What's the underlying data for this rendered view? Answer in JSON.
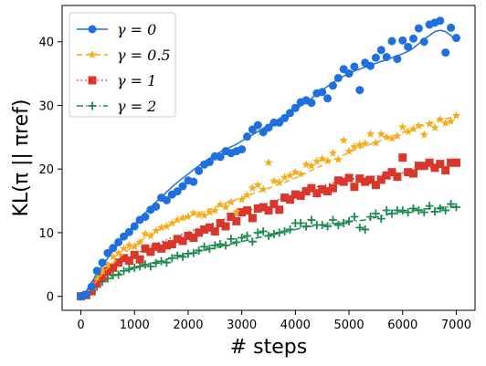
{
  "chart_data": {
    "type": "scatter",
    "xlabel": "# steps",
    "ylabel": "KL(π || πref)",
    "xlim": [
      -350,
      7350
    ],
    "ylim": [
      -2.2,
      45.7
    ],
    "xticks": [
      0,
      1000,
      2000,
      3000,
      4000,
      5000,
      6000,
      7000
    ],
    "xtick_labels": [
      "0",
      "1000",
      "2000",
      "3000",
      "4000",
      "5000",
      "6000",
      "7000"
    ],
    "yticks": [
      0,
      10,
      20,
      30,
      40
    ],
    "ytick_labels": [
      "0",
      "10",
      "20",
      "30",
      "40"
    ],
    "grid": false,
    "legend_position": "top-left",
    "series": [
      {
        "name": "γ = 0",
        "color": "#1f6fde",
        "marker": "circle",
        "line_style": "solid",
        "x": [
          0,
          100,
          200,
          300,
          400,
          500,
          600,
          700,
          800,
          900,
          1000,
          1100,
          1200,
          1300,
          1400,
          1500,
          1600,
          1700,
          1800,
          1900,
          2000,
          2100,
          2200,
          2300,
          2400,
          2500,
          2600,
          2700,
          2800,
          2900,
          3000,
          3100,
          3200,
          3300,
          3400,
          3500,
          3600,
          3700,
          3800,
          3900,
          4000,
          4100,
          4200,
          4300,
          4400,
          4500,
          4600,
          4700,
          4800,
          4900,
          5000,
          5100,
          5200,
          5300,
          5400,
          5500,
          5600,
          5700,
          5800,
          5900,
          6000,
          6100,
          6200,
          6300,
          6400,
          6500,
          6600,
          6700,
          6800,
          6900,
          7000
        ],
        "values": [
          0,
          0.3,
          1.5,
          4.0,
          5.3,
          6.8,
          7.6,
          8.5,
          9.4,
          10.1,
          11.0,
          12.0,
          12.5,
          13.6,
          14.1,
          15.5,
          15.1,
          16.0,
          16.5,
          17.3,
          18.2,
          18.0,
          19.7,
          20.7,
          21.1,
          22.0,
          21.9,
          22.8,
          22.5,
          22.8,
          23.1,
          25.1,
          26.2,
          26.9,
          25.8,
          26.5,
          27.3,
          27.3,
          28.0,
          28.8,
          29.6,
          30.5,
          30.8,
          30.4,
          31.9,
          32.1,
          31.1,
          33.1,
          34.3,
          35.7,
          35.0,
          36.1,
          32.4,
          36.7,
          36.2,
          37.5,
          38.7,
          37.6,
          40.1,
          37.3,
          40.2,
          39.2,
          40.5,
          42.1,
          40.0,
          42.7,
          43.0,
          43.3,
          38.3,
          42.2,
          40.6
        ],
        "fit": [
          0,
          0.8,
          2.2,
          3.5,
          4.8,
          6.0,
          7.2,
          8.3,
          9.3,
          10.3,
          11.3,
          12.2,
          13.1,
          14.0,
          14.8,
          15.6,
          16.4,
          17.2,
          17.9,
          18.6,
          19.2,
          19.9,
          20.5,
          21.1,
          21.7,
          22.2,
          22.7,
          23.1,
          23.5,
          23.9,
          24.4,
          24.9,
          25.4,
          25.9,
          26.4,
          26.9,
          27.4,
          27.9,
          28.4,
          28.9,
          29.4,
          29.9,
          30.5,
          31.1,
          31.8,
          32.4,
          33.0,
          33.6,
          34.1,
          34.6,
          35.0,
          35.4,
          35.7,
          36.0,
          36.3,
          36.6,
          36.9,
          37.2,
          37.5,
          37.8,
          38.1,
          38.5,
          39.0,
          39.7,
          40.4,
          41.0,
          41.6,
          41.8,
          41.6,
          41.0,
          40.0
        ]
      },
      {
        "name": "γ = 0.5",
        "color": "#f5ac1b",
        "marker": "star",
        "line_style": "dashed",
        "x": [
          0,
          100,
          200,
          300,
          400,
          500,
          600,
          700,
          800,
          900,
          1000,
          1100,
          1200,
          1300,
          1400,
          1500,
          1600,
          1700,
          1800,
          1900,
          2000,
          2100,
          2200,
          2300,
          2400,
          2500,
          2600,
          2700,
          2800,
          2900,
          3000,
          3100,
          3200,
          3300,
          3400,
          3500,
          3600,
          3700,
          3800,
          3900,
          4000,
          4100,
          4200,
          4300,
          4400,
          4500,
          4600,
          4700,
          4800,
          4900,
          5000,
          5100,
          5200,
          5300,
          5400,
          5500,
          5600,
          5700,
          5800,
          5900,
          6000,
          6100,
          6200,
          6300,
          6400,
          6500,
          6600,
          6700,
          6800,
          6900,
          7000
        ],
        "values": [
          0,
          0.3,
          1.5,
          3.0,
          4.0,
          5.0,
          6.2,
          6.8,
          7.5,
          8.0,
          7.8,
          8.5,
          9.8,
          9.5,
          10.3,
          10.8,
          11.0,
          11.5,
          12.0,
          12.3,
          12.5,
          13.1,
          12.8,
          12.7,
          13.2,
          13.5,
          14.4,
          14.0,
          14.8,
          13.3,
          15.2,
          15.9,
          17.0,
          17.5,
          16.8,
          21.0,
          18.1,
          17.9,
          18.7,
          19.0,
          19.5,
          19.2,
          20.7,
          20.5,
          21.2,
          21.6,
          21.3,
          22.5,
          21.5,
          24.5,
          22.8,
          23.5,
          23.8,
          24.0,
          25.5,
          24.1,
          25.5,
          25.0,
          24.8,
          25.2,
          26.6,
          25.9,
          26.3,
          26.8,
          25.4,
          27.1,
          26.5,
          27.8,
          27.2,
          27.5,
          28.4
        ],
        "fit": [
          0,
          0.5,
          1.5,
          2.5,
          3.5,
          4.4,
          5.2,
          6.0,
          6.7,
          7.4,
          8.0,
          8.6,
          9.2,
          9.7,
          10.2,
          10.7,
          11.1,
          11.5,
          11.9,
          12.2,
          12.5,
          12.8,
          13.1,
          13.4,
          13.7,
          14.0,
          14.3,
          14.6,
          14.9,
          15.2,
          15.5,
          15.8,
          16.1,
          16.4,
          16.7,
          17.0,
          17.3,
          17.6,
          17.9,
          18.2,
          18.6,
          19.0,
          19.4,
          19.8,
          20.2,
          20.6,
          21.0,
          21.4,
          21.8,
          22.2,
          22.6,
          23.0,
          23.3,
          23.6,
          23.9,
          24.2,
          24.5,
          24.8,
          25.1,
          25.4,
          25.7,
          26.0,
          26.3,
          26.6,
          26.9,
          27.2,
          27.5,
          27.7,
          27.9,
          28.1,
          28.3
        ]
      },
      {
        "name": "γ = 1",
        "color": "#d9372b",
        "marker": "square",
        "line_style": "dotted",
        "x": [
          0,
          100,
          200,
          300,
          400,
          500,
          600,
          700,
          800,
          900,
          1000,
          1100,
          1200,
          1300,
          1400,
          1500,
          1600,
          1700,
          1800,
          1900,
          2000,
          2100,
          2200,
          2300,
          2400,
          2500,
          2600,
          2700,
          2800,
          2900,
          3000,
          3100,
          3200,
          3300,
          3400,
          3500,
          3600,
          3700,
          3800,
          3900,
          4000,
          4100,
          4200,
          4300,
          4400,
          4500,
          4600,
          4700,
          4800,
          4900,
          5000,
          5100,
          5200,
          5300,
          5400,
          5500,
          5600,
          5700,
          5800,
          5900,
          6000,
          6100,
          6200,
          6300,
          6400,
          6500,
          6600,
          6700,
          6800,
          6900,
          7000
        ],
        "values": [
          0,
          0.2,
          0.8,
          2.0,
          3.0,
          4.0,
          4.5,
          5.3,
          6.0,
          5.6,
          6.5,
          5.8,
          7.5,
          7.0,
          7.8,
          7.5,
          8.0,
          8.2,
          9.0,
          8.7,
          9.5,
          9.2,
          10.0,
          10.5,
          10.8,
          10.2,
          11.5,
          11.0,
          12.5,
          11.8,
          13.2,
          13.5,
          12.3,
          13.8,
          14.0,
          13.5,
          14.5,
          13.6,
          15.5,
          15.2,
          16.0,
          15.8,
          16.5,
          17.0,
          16.2,
          16.8,
          16.5,
          17.0,
          18.2,
          18.0,
          18.6,
          17.2,
          18.5,
          18.0,
          18.3,
          17.5,
          18.3,
          19.0,
          19.5,
          18.8,
          21.8,
          19.5,
          19.3,
          20.5,
          20.5,
          21.0,
          20.2,
          20.8,
          19.8,
          21.0,
          21.0
        ],
        "fit": [
          0,
          0.5,
          1.2,
          2.0,
          2.8,
          3.6,
          4.3,
          5.0,
          5.6,
          6.1,
          6.6,
          7.0,
          7.4,
          7.8,
          8.2,
          8.6,
          8.9,
          9.2,
          9.5,
          9.8,
          10.1,
          10.4,
          10.7,
          11.0,
          11.3,
          11.6,
          11.9,
          12.2,
          12.5,
          12.8,
          13.1,
          13.4,
          13.7,
          14.0,
          14.3,
          14.6,
          14.9,
          15.2,
          15.5,
          15.8,
          16.1,
          16.4,
          16.7,
          17.0,
          17.2,
          17.4,
          17.6,
          17.8,
          18.0,
          18.2,
          18.4,
          18.5,
          18.6,
          18.7,
          18.8,
          18.9,
          19.0,
          19.1,
          19.2,
          19.3,
          19.4,
          19.6,
          19.8,
          20.0,
          20.1,
          20.2,
          20.3,
          20.4,
          20.5,
          20.6,
          20.7
        ]
      },
      {
        "name": "γ = 2",
        "color": "#1c8a4e",
        "marker": "plus",
        "line_style": "dashdot",
        "x": [
          0,
          100,
          200,
          300,
          400,
          500,
          600,
          700,
          800,
          900,
          1000,
          1100,
          1200,
          1300,
          1400,
          1500,
          1600,
          1700,
          1800,
          1900,
          2000,
          2100,
          2200,
          2300,
          2400,
          2500,
          2600,
          2700,
          2800,
          2900,
          3000,
          3100,
          3200,
          3300,
          3400,
          3500,
          3600,
          3700,
          3800,
          3900,
          4000,
          4100,
          4200,
          4300,
          4400,
          4500,
          4600,
          4700,
          4800,
          4900,
          5000,
          5100,
          5200,
          5300,
          5400,
          5500,
          5600,
          5700,
          5800,
          5900,
          6000,
          6100,
          6200,
          6300,
          6400,
          6500,
          6600,
          6700,
          6800,
          6900,
          7000
        ],
        "values": [
          0,
          0.2,
          0.8,
          1.5,
          2.3,
          2.8,
          3.3,
          3.4,
          4.0,
          4.3,
          4.5,
          4.7,
          5.0,
          4.7,
          5.2,
          5.5,
          5.3,
          6.0,
          6.4,
          6.2,
          6.7,
          6.8,
          7.2,
          7.8,
          7.5,
          8.0,
          8.2,
          8.0,
          9.0,
          8.5,
          9.2,
          9.5,
          8.6,
          10.0,
          10.2,
          9.5,
          9.8,
          10.0,
          10.2,
          10.5,
          11.5,
          11.5,
          11.0,
          12.0,
          11.2,
          11.2,
          11.0,
          12.0,
          11.2,
          11.5,
          11.8,
          12.5,
          10.8,
          10.5,
          12.5,
          13.0,
          12.2,
          13.5,
          13.0,
          13.5,
          13.5,
          13.2,
          13.8,
          13.5,
          13.2,
          14.2,
          13.3,
          13.8,
          13.5,
          14.5,
          14.0
        ],
        "fit": [
          0,
          0.5,
          1.1,
          1.7,
          2.2,
          2.7,
          3.1,
          3.5,
          3.8,
          4.1,
          4.4,
          4.7,
          5.0,
          5.2,
          5.4,
          5.6,
          5.8,
          6.0,
          6.2,
          6.4,
          6.6,
          6.8,
          7.0,
          7.2,
          7.4,
          7.6,
          7.8,
          8.0,
          8.2,
          8.4,
          8.6,
          8.8,
          9.0,
          9.2,
          9.4,
          9.6,
          9.8,
          10.0,
          10.2,
          10.3,
          10.5,
          10.7,
          10.9,
          11.0,
          11.1,
          11.2,
          11.3,
          11.4,
          11.5,
          11.6,
          11.7,
          11.8,
          11.9,
          12.0,
          12.2,
          12.4,
          12.6,
          12.8,
          13.0,
          13.2,
          13.3,
          13.4,
          13.5,
          13.6,
          13.7,
          13.8,
          13.9,
          14.0,
          14.0,
          14.1,
          14.1
        ]
      }
    ]
  }
}
